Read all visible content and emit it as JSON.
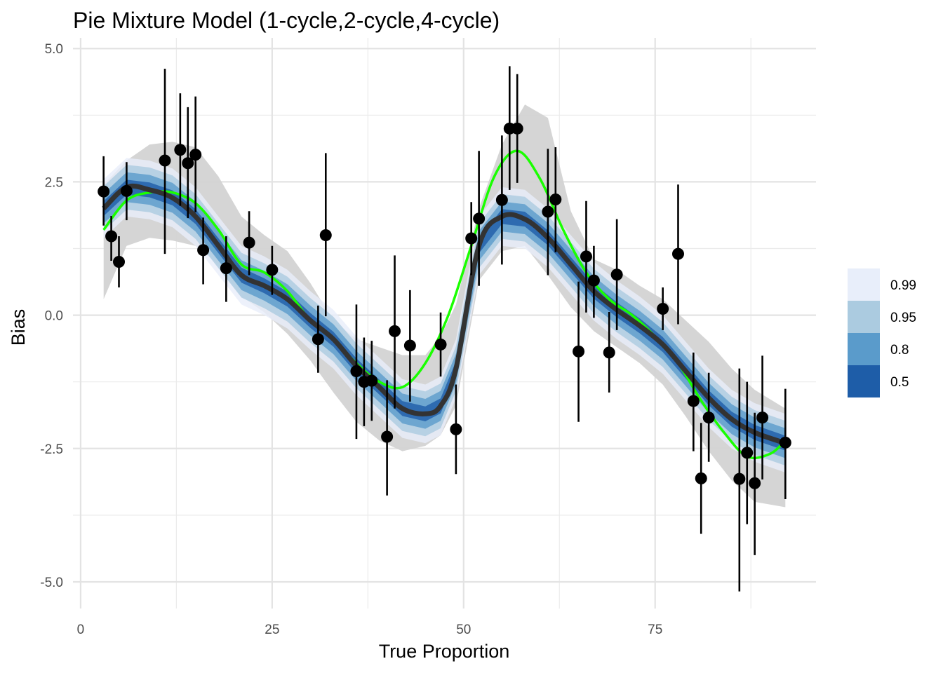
{
  "chart_data": {
    "type": "scatter",
    "title": "Pie Mixture Model (1-cycle,2-cycle,4-cycle)",
    "xlabel": "True Proportion",
    "ylabel": "Bias",
    "xlim": [
      -1,
      96
    ],
    "ylim": [
      -5.5,
      5.2
    ],
    "x_ticks": [
      0,
      25,
      50,
      75
    ],
    "x_tick_labels": [
      "0",
      "25",
      "50",
      "75"
    ],
    "y_ticks": [
      -5,
      -2.5,
      0,
      2.5,
      5
    ],
    "y_tick_labels": [
      "-5.0",
      "-2.5",
      "0.0",
      "2.5",
      "5.0"
    ],
    "grid": true,
    "legend": {
      "position": "right",
      "entries": [
        {
          "label": "0.99",
          "color": "#e8eefa"
        },
        {
          "label": "0.95",
          "color": "#abcbe0"
        },
        {
          "label": "0.8",
          "color": "#5a9bcb"
        },
        {
          "label": "0.5",
          "color": "#1e5da8"
        }
      ]
    },
    "points": {
      "x": [
        3,
        4,
        5,
        6,
        11,
        13,
        14,
        15,
        16,
        19,
        22,
        25,
        31,
        32,
        36,
        37,
        38,
        40,
        41,
        43,
        47,
        49,
        51,
        52,
        55,
        56,
        57,
        61,
        62,
        65,
        66,
        67,
        69,
        70,
        76,
        78,
        80,
        81,
        82,
        86,
        87,
        88,
        89,
        92
      ],
      "y": [
        2.32,
        1.48,
        1.0,
        2.33,
        2.9,
        3.1,
        2.85,
        3.01,
        1.22,
        0.88,
        1.36,
        0.85,
        -0.45,
        1.5,
        -1.05,
        -1.25,
        -1.23,
        -2.28,
        -0.3,
        -0.57,
        -0.55,
        -2.14,
        1.44,
        1.81,
        2.16,
        3.5,
        3.5,
        1.94,
        2.17,
        -0.68,
        1.1,
        0.65,
        -0.7,
        0.76,
        0.12,
        1.15,
        -1.61,
        -3.06,
        -1.92,
        -3.07,
        -2.58,
        -3.15,
        -1.92,
        -2.39
      ],
      "y_low": [
        1.68,
        1.02,
        0.52,
        1.78,
        1.15,
        2.05,
        1.82,
        1.93,
        0.58,
        0.25,
        0.75,
        0.38,
        -1.08,
        -0.02,
        -2.32,
        -2.08,
        -1.98,
        -3.38,
        -1.75,
        -1.62,
        -1.15,
        -2.98,
        0.75,
        0.55,
        0.95,
        2.35,
        2.48,
        0.75,
        1.18,
        -2.0,
        0.05,
        -0.05,
        -1.45,
        -0.28,
        -0.28,
        -0.17,
        -2.55,
        -4.1,
        -2.75,
        -5.18,
        -3.92,
        -4.5,
        -3.08,
        -3.45
      ],
      "y_high": [
        2.98,
        1.86,
        1.48,
        2.87,
        4.62,
        4.16,
        3.9,
        4.1,
        1.83,
        1.48,
        1.95,
        1.3,
        0.18,
        3.04,
        0.2,
        -0.42,
        -0.48,
        -1.22,
        1.12,
        0.47,
        0.05,
        -1.3,
        2.12,
        3.08,
        3.37,
        4.67,
        4.52,
        3.12,
        3.15,
        0.63,
        2.14,
        1.3,
        0.06,
        1.8,
        0.52,
        2.45,
        -0.7,
        -2.02,
        -1.08,
        -1.0,
        -1.25,
        -1.83,
        -0.76,
        -1.38
      ]
    },
    "green_curve": {
      "x": [
        3,
        6,
        9,
        12,
        15,
        18,
        21,
        24,
        27,
        30,
        33,
        36,
        39,
        42,
        45,
        48,
        51,
        54,
        57,
        60,
        63,
        66,
        69,
        72,
        75,
        78,
        81,
        84,
        87,
        90,
        92
      ],
      "y": [
        1.6,
        2.15,
        2.3,
        2.3,
        2.1,
        1.6,
        0.95,
        0.8,
        0.45,
        -0.1,
        -0.45,
        -0.9,
        -1.25,
        -1.35,
        -0.9,
        0.0,
        1.3,
        2.6,
        3.08,
        2.55,
        1.6,
        0.8,
        0.3,
        0.0,
        -0.4,
        -0.9,
        -1.6,
        -2.2,
        -2.65,
        -2.6,
        -2.35
      ]
    },
    "median_curve": {
      "x": [
        3,
        6,
        9,
        12,
        15,
        18,
        21,
        24,
        27,
        30,
        33,
        36,
        39,
        42,
        45,
        47,
        49,
        52,
        55,
        58,
        61,
        64,
        67,
        70,
        73,
        76,
        79,
        82,
        85,
        88,
        92
      ],
      "y": [
        2.0,
        2.4,
        2.35,
        2.2,
        1.85,
        1.3,
        0.75,
        0.55,
        0.3,
        -0.1,
        -0.45,
        -0.95,
        -1.35,
        -1.75,
        -1.85,
        -1.7,
        -1.0,
        1.3,
        1.85,
        1.8,
        1.45,
        0.95,
        0.45,
        0.1,
        -0.2,
        -0.55,
        -1.05,
        -1.55,
        -1.95,
        -2.2,
        -2.4
      ]
    },
    "outer_band": {
      "x": [
        3,
        6,
        9,
        12,
        15,
        18,
        21,
        24,
        27,
        30,
        33,
        36,
        39,
        42,
        45,
        47,
        49,
        52,
        55,
        58,
        61,
        64,
        67,
        70,
        73,
        76,
        79,
        82,
        85,
        88,
        92
      ],
      "lower": [
        0.3,
        1.3,
        1.45,
        1.4,
        1.3,
        0.95,
        0.35,
        0.05,
        -0.35,
        -0.85,
        -1.45,
        -2.0,
        -2.35,
        -2.55,
        -2.45,
        -2.25,
        -1.7,
        0.65,
        1.2,
        1.3,
        0.75,
        0.15,
        -0.3,
        -0.6,
        -0.9,
        -1.3,
        -1.9,
        -2.55,
        -3.1,
        -3.5,
        -3.6
      ],
      "upper": [
        2.45,
        2.9,
        3.2,
        3.25,
        3.15,
        2.6,
        1.85,
        1.5,
        1.2,
        0.6,
        -0.1,
        -0.45,
        -0.6,
        -0.75,
        -0.75,
        -0.4,
        0.2,
        2.0,
        3.2,
        3.95,
        3.7,
        1.95,
        1.05,
        0.85,
        0.55,
        0.3,
        -0.1,
        -0.5,
        -1.0,
        -1.4,
        -1.75
      ]
    },
    "quantile_bands": [
      {
        "level": "0.99",
        "half_width": 0.55
      },
      {
        "level": "0.95",
        "half_width": 0.42
      },
      {
        "level": "0.8",
        "half_width": 0.28
      },
      {
        "level": "0.5",
        "half_width": 0.14
      }
    ],
    "colors": {
      "points": "#000000",
      "green_curve": "#1aff00",
      "median_curve": "#333333",
      "outer_band": "#d3d3d3"
    }
  }
}
